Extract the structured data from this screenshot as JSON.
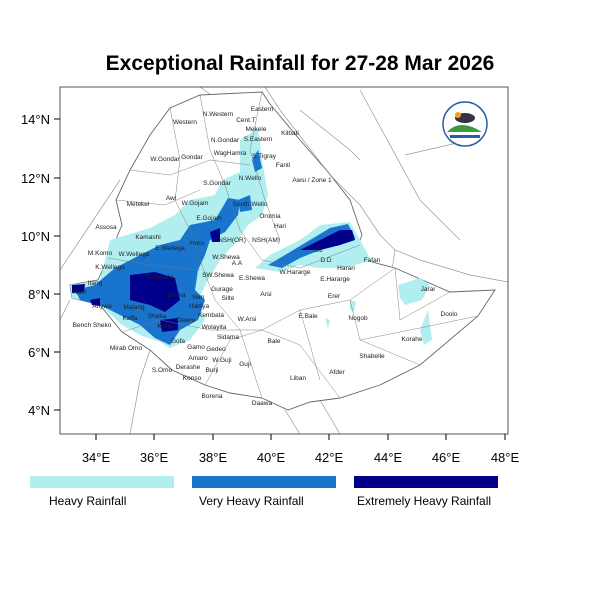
{
  "title": "Exceptional Rainfall for 27-28 Mar 2026",
  "colors": {
    "heavy": "#b0eef0",
    "very_heavy": "#1874cd",
    "extreme": "#00008b",
    "border": "#888888"
  },
  "axes": {
    "x_ticks": [
      "34°E",
      "36°E",
      "38°E",
      "40°E",
      "42°E",
      "44°E",
      "46°E",
      "48°E"
    ],
    "y_ticks": [
      "14°N",
      "12°N",
      "10°N",
      "8°N",
      "6°N",
      "4°N"
    ]
  },
  "legend": [
    "Heavy Rainfall",
    "Very Heavy Rainfall",
    "Extremely Heavy Rainfall"
  ],
  "logo": {
    "text": "Ethiopian Meteorology Institute"
  },
  "regions": [
    "N.Western",
    "Cent.T",
    "Eastern",
    "Western",
    "Mekele",
    "S.Eastern",
    "Kilbati",
    "N.Gondar",
    "W.Gondar",
    "Gondar",
    "WagHamra",
    "S.Tigray",
    "Fanti",
    "Awsi / Zone 1",
    "N.Wello",
    "S.Gondar",
    "Metekel",
    "Awi",
    "W.Gojam",
    "South Wello",
    "Oromia",
    "E.Gojam",
    "Hari",
    "Assosa",
    "Kamashi",
    "NSH(OR)",
    "NSH(AM)",
    "M.Komo",
    "W.Wellega",
    "E.Wellega",
    "Horo",
    "W.Shewa",
    "Siti",
    "D.D",
    "Harari",
    "Fafan",
    "W.Hararge",
    "E.Hararge",
    "A.A",
    "SW.Shewa",
    "E.Shewa",
    "K.Wellega",
    "Itang",
    "B.Bedele",
    "Nuer",
    "Jimma",
    "Arsi",
    "Erer",
    "Jarar",
    "Doolo",
    "Anywa",
    "Majang",
    "Kaffa",
    "Sheka",
    "Gurage",
    "Yem",
    "Silte",
    "Hadiya",
    "Kembata",
    "E.Bale",
    "Nogob",
    "W.Arsi",
    "Bench Sheko",
    "Konta",
    "Dawro",
    "Wolayita",
    "Sidama",
    "Korahe",
    "Bale",
    "Gofa",
    "Gamo",
    "Gedeo",
    "Mirab Omo",
    "Amaro",
    "W.Guji",
    "Guji",
    "Shabelle",
    "S.Omo",
    "Derashe",
    "Burji",
    "Konso",
    "Liban",
    "Afder",
    "Borena",
    "Daawa"
  ]
}
